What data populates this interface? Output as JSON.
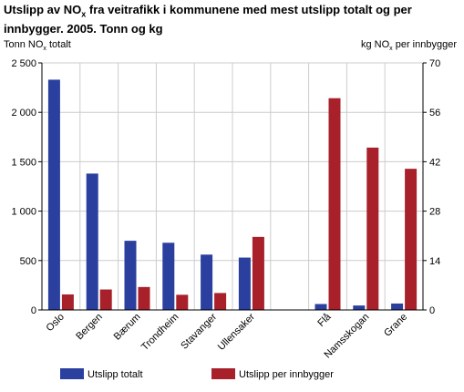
{
  "chart_data": {
    "type": "bar",
    "title": {
      "part1": "Utslipp av NO",
      "sub": "x",
      "part2": " fra veitrafikk i kommunene med mest utslipp totalt og per innbygger. 2005. Tonn og kg"
    },
    "ylabel_left": {
      "pre": "Tonn NO",
      "sub": "x",
      "post": " totalt"
    },
    "ylabel_right": {
      "pre": "kg NO",
      "sub": "x",
      "post": " per innbygger"
    },
    "categories": [
      "Oslo",
      "Bergen",
      "Bærum",
      "Trondheim",
      "Stavanger",
      "Ullensaker",
      "",
      "Flå",
      "Namsskogan",
      "Grane"
    ],
    "series": [
      {
        "name": "Utslipp totalt",
        "axis": "left",
        "color": "#2a3f9e",
        "values": [
          2330,
          1380,
          700,
          680,
          560,
          530,
          null,
          60,
          45,
          65
        ]
      },
      {
        "name": "Utslipp per innbygger",
        "axis": "right",
        "color": "#a8202a",
        "values": [
          4.4,
          5.8,
          6.5,
          4.3,
          4.8,
          20.7,
          null,
          60.0,
          46.0,
          40.0
        ]
      }
    ],
    "ylim_left": [
      0,
      2500
    ],
    "ylim_right": [
      0,
      70
    ],
    "yticks_left": [
      0,
      500,
      1000,
      1500,
      2000,
      2500
    ],
    "ytick_labels_left": [
      "0",
      "500",
      "1 000",
      "1 500",
      "2 000",
      "2 500"
    ],
    "yticks_right": [
      0,
      14,
      28,
      42,
      56,
      70
    ],
    "ytick_labels_right": [
      "0",
      "14",
      "28",
      "42",
      "56",
      "70"
    ],
    "grid": true,
    "legend_position": "bottom"
  }
}
